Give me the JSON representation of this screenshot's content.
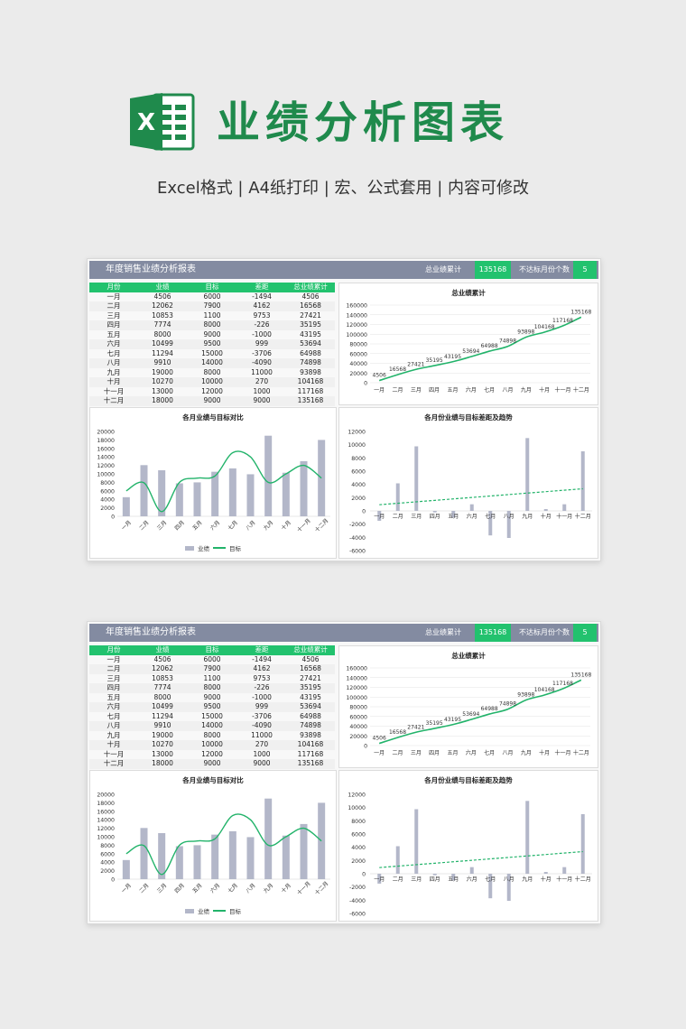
{
  "hero": {
    "title": "业绩分析图表",
    "subtitle": "Excel格式 |  A4纸打印 | 宏、公式套用 | 内容可修改",
    "logo_icon": "excel-icon"
  },
  "sheet": {
    "title": "年度销售业绩分析报表",
    "total_label": "总业绩累计",
    "total_value": "135168",
    "miss_label": "不达标月份个数",
    "miss_value": "5",
    "columns": [
      "月份",
      "业绩",
      "目标",
      "差距",
      "总业绩累计"
    ],
    "rows": [
      [
        "一月",
        "4506",
        "6000",
        "-1494",
        "4506"
      ],
      [
        "二月",
        "12062",
        "7900",
        "4162",
        "16568"
      ],
      [
        "三月",
        "10853",
        "1100",
        "9753",
        "27421"
      ],
      [
        "四月",
        "7774",
        "8000",
        "-226",
        "35195"
      ],
      [
        "五月",
        "8000",
        "9000",
        "-1000",
        "43195"
      ],
      [
        "六月",
        "10499",
        "9500",
        "999",
        "53694"
      ],
      [
        "七月",
        "11294",
        "15000",
        "-3706",
        "64988"
      ],
      [
        "八月",
        "9910",
        "14000",
        "-4090",
        "74898"
      ],
      [
        "九月",
        "19000",
        "8000",
        "11000",
        "93898"
      ],
      [
        "十月",
        "10270",
        "10000",
        "270",
        "104168"
      ],
      [
        "十一月",
        "13000",
        "12000",
        "1000",
        "117168"
      ],
      [
        "十二月",
        "18000",
        "9000",
        "9000",
        "135168"
      ]
    ]
  },
  "colors": {
    "green": "#22c26e",
    "line": "#22b36a",
    "bar": "#b3b7c9",
    "header": "#838ba1"
  },
  "chart_data": [
    {
      "type": "line",
      "title": "总业绩累计",
      "categories": [
        "一月",
        "二月",
        "三月",
        "四月",
        "五月",
        "六月",
        "七月",
        "八月",
        "九月",
        "十月",
        "十一月",
        "十二月"
      ],
      "values": [
        4506,
        16568,
        27421,
        35195,
        43195,
        53694,
        64988,
        74898,
        93898,
        104168,
        117168,
        135168
      ],
      "yticks": [
        0,
        20000,
        40000,
        60000,
        80000,
        100000,
        120000,
        140000,
        160000
      ],
      "ylim": [
        0,
        160000
      ]
    },
    {
      "type": "bar",
      "title": "各月业绩与目标对比",
      "categories": [
        "一月",
        "二月",
        "三月",
        "四月",
        "五月",
        "六月",
        "七月",
        "八月",
        "九月",
        "十月",
        "十一月",
        "十二月"
      ],
      "series": [
        {
          "name": "业绩",
          "kind": "bar",
          "values": [
            4506,
            12062,
            10853,
            7774,
            8000,
            10499,
            11294,
            9910,
            19000,
            10270,
            13000,
            18000
          ]
        },
        {
          "name": "目标",
          "kind": "line",
          "values": [
            6000,
            7900,
            1100,
            8000,
            9000,
            9500,
            15000,
            14000,
            8000,
            10000,
            12000,
            9000
          ]
        }
      ],
      "yticks": [
        0,
        2000,
        4000,
        6000,
        8000,
        10000,
        12000,
        14000,
        16000,
        18000,
        20000
      ],
      "ylim": [
        0,
        20000
      ]
    },
    {
      "type": "bar",
      "title": "各月份业绩与目标差距及趋势",
      "categories": [
        "一月",
        "二月",
        "三月",
        "四月",
        "五月",
        "六月",
        "七月",
        "八月",
        "九月",
        "十月",
        "十一月",
        "十二月"
      ],
      "values": [
        -1494,
        4162,
        9753,
        -226,
        -1000,
        999,
        -3706,
        -4090,
        11000,
        270,
        1000,
        9000
      ],
      "trend": "linear",
      "yticks": [
        -6000,
        -4000,
        -2000,
        0,
        2000,
        4000,
        6000,
        8000,
        10000,
        12000
      ],
      "ylim": [
        -6000,
        12000
      ]
    }
  ]
}
